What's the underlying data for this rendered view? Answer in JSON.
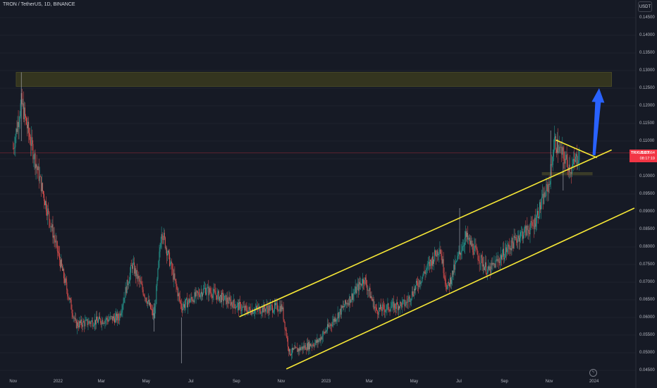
{
  "header": {
    "title": "TRON / TetherUS, 1D, BINANCE"
  },
  "toolbar": {
    "currency_label": "USDT"
  },
  "price_label": {
    "symbol": "TRXUSDT",
    "value": "0.10664",
    "countdown": "08:17:19"
  },
  "event_icon": "lightning-icon",
  "chart_data": {
    "type": "candlestick",
    "y_ticks": [
      "0.14500",
      "0.14000",
      "0.13500",
      "0.13000",
      "0.12500",
      "0.12000",
      "0.11500",
      "0.11000",
      "0.10500",
      "0.10000",
      "0.09500",
      "0.09000",
      "0.08500",
      "0.08000",
      "0.07500",
      "0.07000",
      "0.06500",
      "0.06000",
      "0.05500",
      "0.05000",
      "0.04500"
    ],
    "x_ticks": [
      "Nov",
      "2022",
      "Mar",
      "May",
      "Jul",
      "Sep",
      "Nov",
      "2023",
      "Mar",
      "May",
      "Jul",
      "Sep",
      "Nov",
      "2024"
    ],
    "ylim": [
      0.044,
      0.15
    ],
    "key_points": [
      {
        "x": "2021-11-01",
        "y": 0.108
      },
      {
        "x": "2021-11-12",
        "y": 0.121
      },
      {
        "x": "2021-12-12",
        "y": 0.095
      },
      {
        "x": "2022-01-25",
        "y": 0.058
      },
      {
        "x": "2022-03-25",
        "y": 0.06
      },
      {
        "x": "2022-04-12",
        "y": 0.075
      },
      {
        "x": "2022-05-12",
        "y": 0.06
      },
      {
        "x": "2022-05-22",
        "y": 0.085
      },
      {
        "x": "2022-06-18",
        "y": 0.063
      },
      {
        "x": "2022-07-20",
        "y": 0.068
      },
      {
        "x": "2022-09-15",
        "y": 0.062
      },
      {
        "x": "2022-11-02",
        "y": 0.063
      },
      {
        "x": "2022-11-12",
        "y": 0.05
      },
      {
        "x": "2022-12-20",
        "y": 0.053
      },
      {
        "x": "2023-02-05",
        "y": 0.066
      },
      {
        "x": "2023-02-22",
        "y": 0.071
      },
      {
        "x": "2023-03-10",
        "y": 0.062
      },
      {
        "x": "2023-04-20",
        "y": 0.064
      },
      {
        "x": "2023-06-05",
        "y": 0.08
      },
      {
        "x": "2023-06-15",
        "y": 0.068
      },
      {
        "x": "2023-07-10",
        "y": 0.083
      },
      {
        "x": "2023-08-10",
        "y": 0.073
      },
      {
        "x": "2023-09-20",
        "y": 0.083
      },
      {
        "x": "2023-10-10",
        "y": 0.086
      },
      {
        "x": "2023-11-01",
        "y": 0.098
      },
      {
        "x": "2023-11-08",
        "y": 0.11
      },
      {
        "x": "2023-12-01",
        "y": 0.102
      },
      {
        "x": "2023-12-12",
        "y": 0.1066
      }
    ],
    "last_price": 0.10664,
    "price_line_color": "#f23645",
    "annotations": {
      "resistance_zone": {
        "y": [
          0.1255,
          0.1295
        ],
        "x": [
          "2021-11-05",
          "2024-01-25"
        ],
        "color": "#3f3f1d"
      },
      "small_zone": {
        "y": [
          0.1003,
          0.1012
        ],
        "x": [
          "2023-10-22",
          "2023-12-30"
        ]
      },
      "channel_upper": {
        "from": {
          "x": "2022-09-05",
          "y": 0.0602
        },
        "to": {
          "x": "2024-01-25",
          "y": 0.1075
        }
      },
      "channel_lower": {
        "from": {
          "x": "2022-11-08",
          "y": 0.0454
        },
        "to": {
          "x": "2024-02-25",
          "y": 0.091
        }
      },
      "triangle_top": {
        "from": {
          "x": "2023-11-10",
          "y": 0.1103
        },
        "to": {
          "x": "2024-01-05",
          "y": 0.1053
        }
      },
      "arrow": {
        "from": {
          "x": "2024-01-01",
          "y": 0.106
        },
        "to": {
          "x": "2024-01-08",
          "y": 0.125
        },
        "color": "#2962ff"
      },
      "line_color": "#f7e836"
    },
    "up_color": "#26a69a",
    "down_color": "#ef5350"
  }
}
